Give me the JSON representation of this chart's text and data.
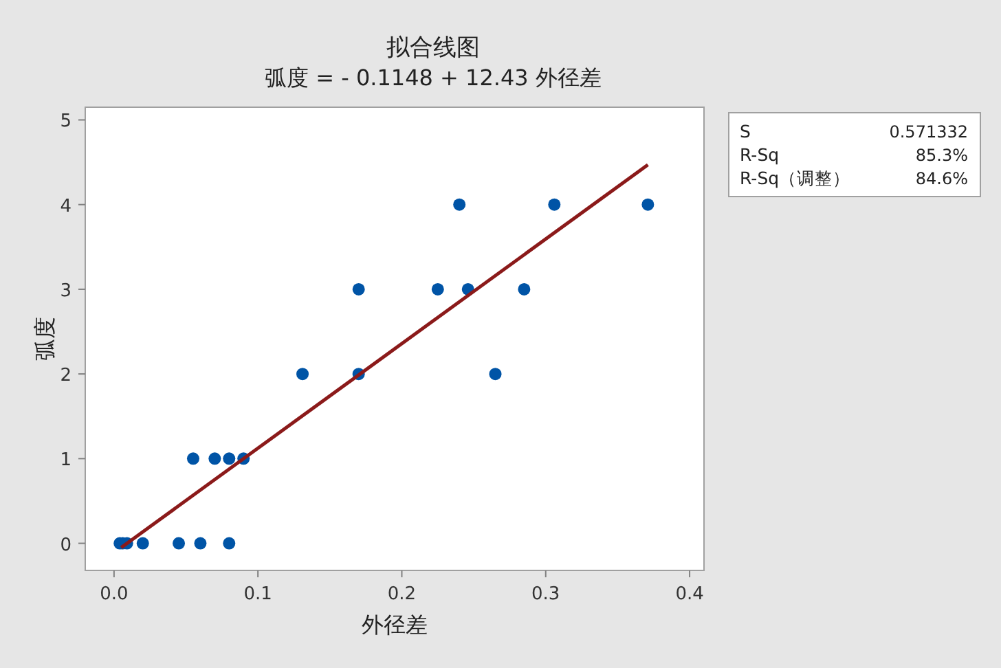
{
  "chart_data": {
    "type": "scatter",
    "title": "拟合线图",
    "subtitle": "弧度 = - 0.1148 + 12.43 外径差",
    "xlabel": "外径差",
    "ylabel": "弧度",
    "xlim": [
      -0.02,
      0.41
    ],
    "ylim": [
      -0.32,
      5.15
    ],
    "xticks": [
      {
        "value": 0,
        "label": "0.0"
      },
      0.1,
      0.2,
      0.3,
      0.4
    ],
    "yticks": [
      0,
      1,
      2,
      3,
      4,
      5
    ],
    "grid": false,
    "series": [
      {
        "marker": "circle",
        "color": "#0054a6",
        "x": [
          0.004,
          0.006,
          0.009,
          0.02,
          0.045,
          0.06,
          0.08,
          0.055,
          0.07,
          0.08,
          0.09,
          0.131,
          0.17,
          0.265,
          0.17,
          0.225,
          0.246,
          0.285,
          0.24,
          0.306,
          0.371
        ],
        "values": [
          0,
          0,
          0,
          0,
          0,
          0,
          0,
          1,
          1,
          1,
          1,
          2,
          2,
          2,
          3,
          3,
          3,
          3,
          4,
          4,
          4
        ]
      },
      {
        "type": "line",
        "color": "#8b1a1a",
        "x": [
          0.005,
          0.371
        ],
        "values": [
          -0.05,
          4.47
        ]
      }
    ],
    "annotations": [
      "S",
      "0.571332",
      "R-Sq",
      "85.3%",
      "R-Sq（调整）",
      "84.6%"
    ]
  }
}
